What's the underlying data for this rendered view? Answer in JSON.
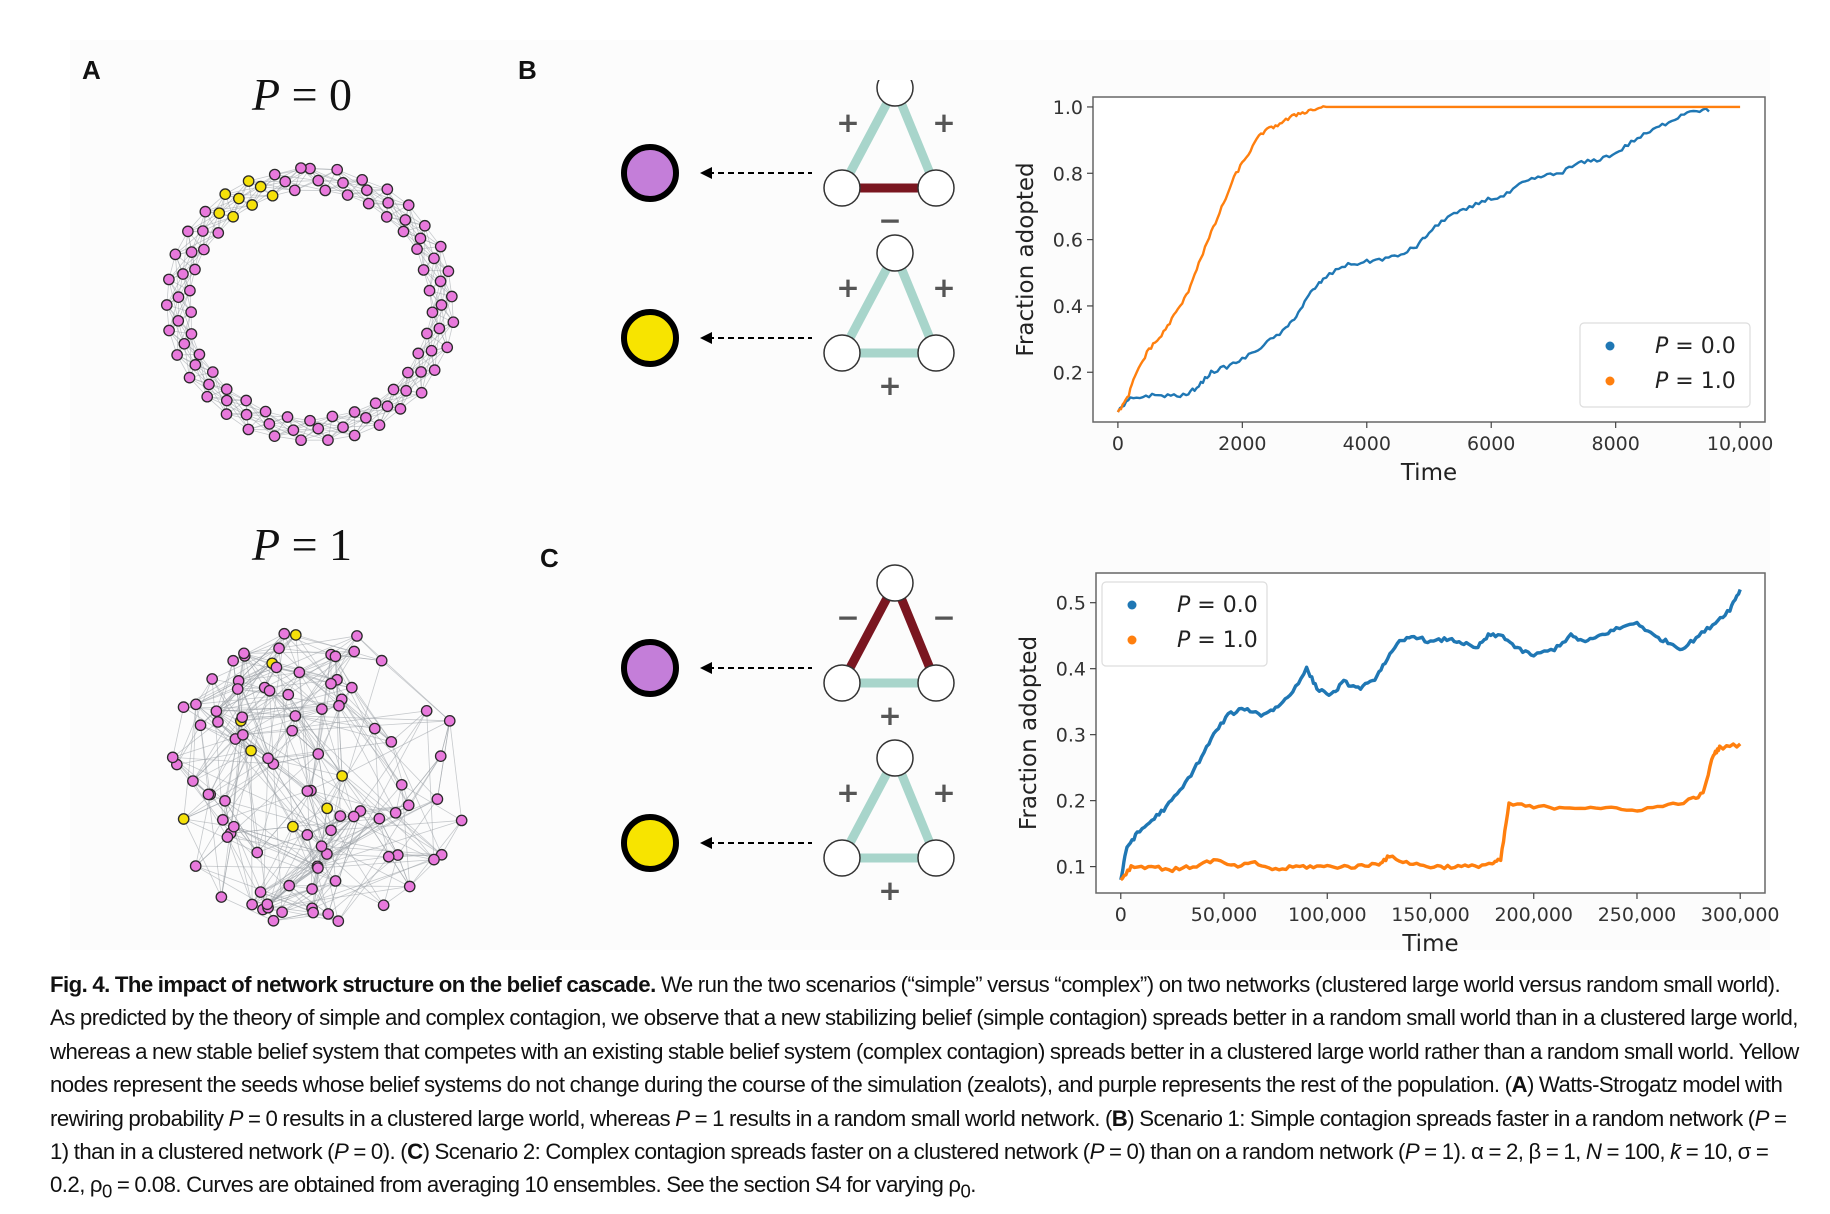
{
  "panels": {
    "A": {
      "label": "A",
      "top_title": {
        "var": "P",
        "eq": " = ",
        "val": "0"
      },
      "bottom_title": {
        "var": "P",
        "eq": " = ",
        "val": "1"
      },
      "node_colors": {
        "seed": "#f5e10a",
        "rest": "#e879dc",
        "edge": "#9aa0a6",
        "stroke": "#2a2a2a"
      }
    },
    "B": {
      "label": "B",
      "rows": [
        {
          "node_color": "#c47ed9",
          "triangle": {
            "left": "+",
            "right": "+",
            "bottom": "−",
            "left_edge": "positive",
            "right_edge": "positive",
            "bottom_edge": "negative"
          }
        },
        {
          "node_color": "#f7e400",
          "triangle": {
            "left": "+",
            "right": "+",
            "bottom": "+",
            "left_edge": "positive",
            "right_edge": "positive",
            "bottom_edge": "positive"
          }
        }
      ]
    },
    "C": {
      "label": "C",
      "rows": [
        {
          "node_color": "#c47ed9",
          "triangle": {
            "left": "−",
            "right": "−",
            "bottom": "+",
            "left_edge": "negative",
            "right_edge": "negative",
            "bottom_edge": "positive"
          }
        },
        {
          "node_color": "#f7e400",
          "triangle": {
            "left": "+",
            "right": "+",
            "bottom": "+",
            "left_edge": "positive",
            "right_edge": "positive",
            "bottom_edge": "positive"
          }
        }
      ]
    },
    "edge_colors": {
      "positive": "#a8d5cb",
      "positive_dark": "#98c4b8",
      "negative": "#7a1620"
    }
  },
  "chart_data": [
    {
      "type": "line",
      "panel": "B",
      "title": "",
      "xlabel": "Time",
      "ylabel": "Fraction adopted",
      "xlim": [
        -400,
        10400
      ],
      "ylim": [
        0.05,
        1.03
      ],
      "xticks": [
        0,
        2000,
        4000,
        6000,
        8000,
        10000
      ],
      "xtick_labels": [
        "0",
        "2000",
        "4000",
        "6000",
        "8000",
        "10,000"
      ],
      "yticks": [
        0.2,
        0.4,
        0.6,
        0.8,
        1.0
      ],
      "ytick_labels": [
        "0.2",
        "0.4",
        "0.6",
        "0.8",
        "1.0"
      ],
      "grid": false,
      "legend": "bottom-right",
      "series": [
        {
          "name": "P = 0.0",
          "color": "#1f77b4",
          "x": [
            0,
            200,
            500,
            800,
            1100,
            1300,
            1500,
            1800,
            2100,
            2400,
            2700,
            2900,
            3100,
            3300,
            3600,
            3900,
            4200,
            4500,
            4800,
            5000,
            5300,
            5600,
            5900,
            6200,
            6500,
            6800,
            7100,
            7400,
            7700,
            8000,
            8300,
            8600,
            8900,
            9200,
            9500
          ],
          "y": [
            0.08,
            0.12,
            0.13,
            0.13,
            0.13,
            0.16,
            0.2,
            0.22,
            0.25,
            0.29,
            0.33,
            0.38,
            0.44,
            0.48,
            0.52,
            0.53,
            0.54,
            0.55,
            0.58,
            0.62,
            0.67,
            0.69,
            0.72,
            0.73,
            0.77,
            0.79,
            0.8,
            0.83,
            0.84,
            0.86,
            0.9,
            0.93,
            0.96,
            0.99,
            0.99
          ]
        },
        {
          "name": "P = 1.0",
          "color": "#ff7f0e",
          "x": [
            0,
            150,
            300,
            500,
            700,
            900,
            1100,
            1300,
            1500,
            1700,
            1900,
            2100,
            2300,
            2500,
            2700,
            2900,
            3100,
            3300,
            3600,
            4000,
            5000,
            6000,
            7000,
            8000,
            9000,
            10000
          ],
          "y": [
            0.08,
            0.12,
            0.2,
            0.27,
            0.31,
            0.37,
            0.43,
            0.53,
            0.62,
            0.71,
            0.8,
            0.86,
            0.92,
            0.94,
            0.96,
            0.98,
            0.99,
            1.0,
            1.0,
            1.0,
            1.0,
            1.0,
            1.0,
            1.0,
            1.0,
            1.0
          ]
        }
      ]
    },
    {
      "type": "line",
      "panel": "C",
      "title": "",
      "xlabel": "Time",
      "ylabel": "Fraction adopted",
      "xlim": [
        -12000,
        312000
      ],
      "ylim": [
        0.06,
        0.545
      ],
      "xticks": [
        0,
        50000,
        100000,
        150000,
        200000,
        250000,
        300000
      ],
      "xtick_labels": [
        "0",
        "50,000",
        "100,000",
        "150,000",
        "200,000",
        "250,000",
        "300,000"
      ],
      "yticks": [
        0.1,
        0.2,
        0.3,
        0.4,
        0.5
      ],
      "ytick_labels": [
        "0.1",
        "0.2",
        "0.3",
        "0.4",
        "0.5"
      ],
      "grid": false,
      "legend": "top-left",
      "series": [
        {
          "name": "P = 0.0",
          "color": "#1f77b4",
          "x": [
            0,
            3000,
            8000,
            15000,
            22000,
            30000,
            38000,
            45000,
            52000,
            60000,
            68000,
            75000,
            82000,
            90000,
            95000,
            102000,
            108000,
            115000,
            122000,
            128000,
            135000,
            142000,
            150000,
            158000,
            165000,
            172000,
            178000,
            185000,
            192000,
            200000,
            210000,
            218000,
            225000,
            232000,
            240000,
            250000,
            258000,
            265000,
            272000,
            280000,
            288000,
            295000,
            300000
          ],
          "y": [
            0.08,
            0.13,
            0.15,
            0.17,
            0.19,
            0.22,
            0.26,
            0.3,
            0.33,
            0.34,
            0.33,
            0.34,
            0.36,
            0.4,
            0.37,
            0.36,
            0.38,
            0.37,
            0.38,
            0.41,
            0.44,
            0.45,
            0.44,
            0.445,
            0.44,
            0.43,
            0.45,
            0.45,
            0.43,
            0.42,
            0.43,
            0.45,
            0.44,
            0.45,
            0.46,
            0.47,
            0.45,
            0.44,
            0.43,
            0.45,
            0.47,
            0.49,
            0.52
          ]
        },
        {
          "name": "P = 1.0",
          "color": "#ff7f0e",
          "x": [
            0,
            5000,
            15000,
            25000,
            35000,
            45000,
            55000,
            65000,
            75000,
            85000,
            95000,
            105000,
            115000,
            125000,
            130000,
            140000,
            150000,
            160000,
            170000,
            180000,
            184000,
            188000,
            200000,
            215000,
            230000,
            245000,
            260000,
            275000,
            282000,
            287000,
            290000,
            300000
          ],
          "y": [
            0.08,
            0.1,
            0.1,
            0.095,
            0.1,
            0.11,
            0.1,
            0.105,
            0.095,
            0.1,
            0.1,
            0.1,
            0.1,
            0.105,
            0.115,
            0.105,
            0.1,
            0.1,
            0.1,
            0.105,
            0.11,
            0.195,
            0.19,
            0.19,
            0.19,
            0.185,
            0.19,
            0.2,
            0.21,
            0.27,
            0.28,
            0.285
          ]
        }
      ]
    }
  ],
  "caption": {
    "fig_label": "Fig. 4. The impact of network structure on the belief cascade.",
    "s1": " We run the two scenarios (“simple” versus “complex”) on two networks (clustered large world versus random small world). As predicted by the theory of simple and complex contagion, we observe that a new stabilizing belief (simple contagion) spreads better in a random small world than in a clustered large world, whereas a new stable belief system that competes with an existing stable belief system (complex contagion) spreads better in a clustered large world rather than a random small world. Yellow nodes represent the seeds whose belief systems do not change during the course of the simulation (zealots), and purple represents the rest of the population. (",
    "A": "A",
    "s2a": ") Watts-Strogatz model with rewiring probability ",
    "P": "P",
    "s2b": " = 0 results in a clustered large world, whereas ",
    "s2c": " = 1 results in a random small world network. (",
    "B": "B",
    "s3a": ") Scenario 1: Simple contagion spreads faster in a random network (",
    "s3b": " = 1) than in a clustered network (",
    "s3c": " = 0). (",
    "C": "C",
    "s4a": ") Scenario 2: Complex contagion spreads faster on a clustered network (",
    "s4b": " = 0) than on a random network (",
    "s4c": " = 1). α = 2, β = 1, ",
    "N": "N",
    "s5a": " = 100, ",
    "k": "k̄",
    "s5b": " = 10, σ = 0.2, ρ",
    "sub0": "0",
    "s5c": " = 0.08. Curves are obtained from averaging 10 ensembles. See the section S4 for varying ρ",
    "s5d": "."
  }
}
